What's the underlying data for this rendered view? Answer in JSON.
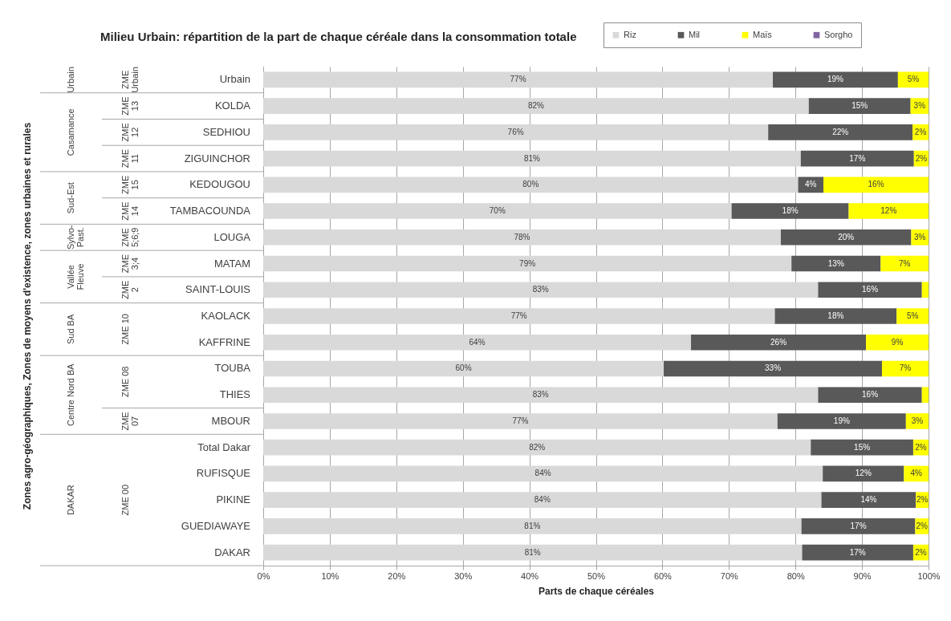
{
  "chart_data": {
    "type": "bar",
    "orientation": "horizontal",
    "stacked": true,
    "title": "Milieu Urbain: répartition de la part de chaque céréale dans la consommation totale",
    "xlabel": "Parts de chaque céréales",
    "categories": [
      "Urbain",
      "KOLDA",
      "SEDHIOU",
      "ZIGUINCHOR",
      "KEDOUGOU",
      "TAMBACOUNDA",
      "LOUGA",
      "MATAM",
      "SAINT-LOUIS",
      "KAOLACK",
      "KAFFRINE",
      "TOUBA",
      "THIES",
      "MBOUR",
      "Total Dakar",
      "RUFISQUE",
      "PIKINE",
      "GUEDIAWAYE",
      "DAKAR"
    ],
    "series": [
      {
        "name": "Riz",
        "color": "#d9d9d9",
        "values": [
          76.6,
          82.0,
          75.9,
          80.8,
          80.4,
          70.4,
          77.8,
          79.4,
          83.4,
          76.9,
          64.3,
          60.2,
          83.4,
          77.3,
          82.3,
          84.1,
          83.9,
          80.9,
          81.0
        ],
        "value_labels": [
          "77%",
          "82%",
          "76%",
          "81%",
          "80%",
          "70%",
          "78%",
          "79%",
          "83%",
          "77%",
          "64%",
          "60%",
          "83%",
          "77%",
          "82%",
          "84%",
          "84%",
          "81%",
          "81%"
        ]
      },
      {
        "name": "Mil",
        "color": "#595959",
        "values": [
          18.8,
          15.3,
          21.7,
          17.0,
          3.8,
          17.6,
          19.6,
          13.4,
          15.6,
          18.3,
          26.3,
          32.8,
          15.6,
          19.3,
          15.4,
          12.2,
          14.2,
          17.1,
          16.7
        ],
        "value_labels": [
          "19%",
          "15%",
          "22%",
          "17%",
          "4%",
          "18%",
          "20%",
          "13%",
          "16%",
          "18%",
          "26%",
          "33%",
          "16%",
          "19%",
          "15%",
          "12%",
          "14%",
          "17%",
          "17%"
        ]
      },
      {
        "name": "Maïs",
        "color": "#ffff00",
        "values": [
          4.6,
          2.7,
          2.4,
          2.2,
          15.8,
          12.0,
          2.6,
          7.2,
          1.0,
          4.8,
          9.4,
          7.0,
          1.0,
          3.4,
          2.3,
          3.7,
          1.9,
          2.0,
          2.3
        ],
        "value_labels": [
          "5%",
          "3%",
          "2%",
          "2%",
          "16%",
          "12%",
          "3%",
          "7%",
          null,
          "5%",
          "9%",
          "7%",
          null,
          "3%",
          "2%",
          "4%",
          "2%",
          "2%",
          "2%"
        ]
      },
      {
        "name": "Sorgho",
        "color": "#8064a2",
        "values": [
          null,
          null,
          null,
          null,
          null,
          null,
          null,
          null,
          null,
          null,
          null,
          null,
          null,
          null,
          null,
          null,
          null,
          null,
          null
        ]
      }
    ],
    "xlim": [
      0,
      100
    ],
    "xticks": [
      {
        "value": 0,
        "label": "0%"
      },
      {
        "value": 10,
        "label": "10%"
      },
      {
        "value": 20,
        "label": "20%"
      },
      {
        "value": 30,
        "label": "30%"
      },
      {
        "value": 40,
        "label": "40%"
      },
      {
        "value": 50,
        "label": "50%"
      },
      {
        "value": 60,
        "label": "60%"
      },
      {
        "value": 70,
        "label": "70%"
      },
      {
        "value": 80,
        "label": "80%"
      },
      {
        "value": 90,
        "label": "90%"
      },
      {
        "value": 100,
        "label": "100%"
      }
    ],
    "grid": "x",
    "legend": "top right",
    "annotations": [
      "Zones agro-géographiques, Zones de moyens d'existence, zones urbaines et rurales",
      "Urbain",
      "Casamance",
      "Sud-Est",
      "Sylvo-Past.",
      "Vallée Fleuve",
      "Sud BA",
      "Centre Nord BA",
      "DAKAR",
      "ZME Urbain",
      "ZME 13",
      "ZME 12",
      "ZME 11",
      "ZME 15",
      "ZME 14",
      "ZME 5;6;9",
      "ZME 3;4",
      "ZME 2",
      "ZME 10",
      "ZME 08",
      "ZME 07",
      "ZME 00"
    ]
  }
}
